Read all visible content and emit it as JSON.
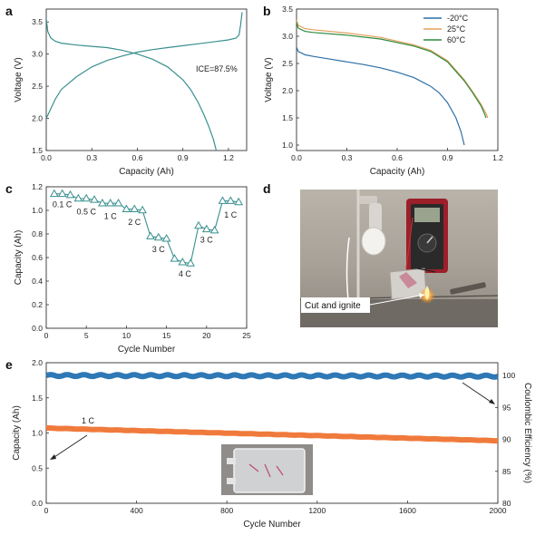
{
  "panels": {
    "a": "a",
    "b": "b",
    "c": "c",
    "d": "d",
    "e": "e"
  },
  "photo_d": {
    "annotation": "Cut and ignite"
  },
  "colors": {
    "teal": "#3a8f8f",
    "blue": "#2c6fa6",
    "orange": "#e2a05a",
    "green": "#2e8b3e",
    "ce_blue": "#2e78b5",
    "cap_orange": "#f07a3c"
  },
  "chart_data": [
    {
      "id": "a",
      "type": "line",
      "xlabel": "Capacity (Ah)",
      "ylabel": "Voltage (V)",
      "xlim": [
        0,
        1.32
      ],
      "ylim": [
        1.5,
        3.7
      ],
      "xticks": [
        "0.0",
        "0.3",
        "0.6",
        "0.9",
        "1.2"
      ],
      "xtick_values": [
        0,
        0.3,
        0.6,
        0.9,
        1.2
      ],
      "yticks": [
        "1.5",
        "2.0",
        "2.5",
        "3.0",
        "3.5"
      ],
      "ytick_values": [
        1.5,
        2.0,
        2.5,
        3.0,
        3.5
      ],
      "annotation": "ICE=87.5%",
      "series": [
        {
          "x": [
            0,
            0.01,
            0.03,
            0.06,
            0.1,
            0.2,
            0.3,
            0.4,
            0.5,
            0.6,
            0.7,
            0.8,
            0.9,
            1.0,
            1.1,
            1.2,
            1.25,
            1.27,
            1.28,
            1.29
          ],
          "y": [
            2.0,
            2.05,
            2.15,
            2.3,
            2.45,
            2.65,
            2.8,
            2.9,
            2.97,
            3.03,
            3.07,
            3.1,
            3.13,
            3.16,
            3.19,
            3.22,
            3.25,
            3.3,
            3.45,
            3.65
          ]
        },
        {
          "x": [
            0,
            0.01,
            0.03,
            0.06,
            0.1,
            0.2,
            0.3,
            0.4,
            0.5,
            0.6,
            0.7,
            0.8,
            0.9,
            0.95,
            1.0,
            1.04,
            1.07,
            1.1,
            1.12
          ],
          "y": [
            3.55,
            3.35,
            3.25,
            3.2,
            3.17,
            3.14,
            3.12,
            3.1,
            3.06,
            3.0,
            2.92,
            2.8,
            2.6,
            2.45,
            2.25,
            2.05,
            1.88,
            1.68,
            1.5
          ]
        }
      ]
    },
    {
      "id": "b",
      "type": "line",
      "xlabel": "Capacity (Ah)",
      "ylabel": "Voltage (V)",
      "xlim": [
        0,
        1.2
      ],
      "ylim": [
        0.9,
        3.5
      ],
      "xticks": [
        "0.0",
        "0.3",
        "0.6",
        "0.9",
        "1.2"
      ],
      "xtick_values": [
        0,
        0.3,
        0.6,
        0.9,
        1.2
      ],
      "yticks": [
        "1.0",
        "1.5",
        "2.0",
        "2.5",
        "3.0",
        "3.5"
      ],
      "ytick_values": [
        1.0,
        1.5,
        2.0,
        2.5,
        3.0,
        3.5
      ],
      "legend_position": "top-right",
      "series": [
        {
          "name": "-20°C",
          "x": [
            0,
            0.01,
            0.05,
            0.1,
            0.2,
            0.3,
            0.4,
            0.5,
            0.6,
            0.7,
            0.8,
            0.85,
            0.9,
            0.95,
            0.98,
            1.0
          ],
          "y": [
            2.8,
            2.72,
            2.66,
            2.63,
            2.58,
            2.53,
            2.48,
            2.42,
            2.34,
            2.24,
            2.08,
            1.96,
            1.78,
            1.5,
            1.25,
            1.0
          ]
        },
        {
          "name": "25°C",
          "x": [
            0,
            0.01,
            0.05,
            0.1,
            0.3,
            0.5,
            0.7,
            0.8,
            0.9,
            1.0,
            1.05,
            1.1,
            1.13,
            1.14
          ],
          "y": [
            3.3,
            3.2,
            3.14,
            3.12,
            3.06,
            2.98,
            2.84,
            2.74,
            2.55,
            2.2,
            1.98,
            1.75,
            1.58,
            1.5
          ]
        },
        {
          "name": "60°C",
          "x": [
            0,
            0.01,
            0.05,
            0.1,
            0.3,
            0.5,
            0.7,
            0.8,
            0.9,
            1.0,
            1.05,
            1.1,
            1.12,
            1.13
          ],
          "y": [
            3.25,
            3.15,
            3.09,
            3.07,
            3.02,
            2.95,
            2.82,
            2.72,
            2.53,
            2.18,
            1.96,
            1.72,
            1.58,
            1.5
          ]
        }
      ]
    },
    {
      "id": "c",
      "type": "line",
      "xlabel": "Cycle Number",
      "ylabel": "Capacity (Ah)",
      "xlim": [
        0,
        25
      ],
      "ylim": [
        0,
        1.2
      ],
      "xticks": [
        "0",
        "5",
        "10",
        "15",
        "20",
        "25"
      ],
      "xtick_values": [
        0,
        5,
        10,
        15,
        20,
        25
      ],
      "yticks": [
        "0.0",
        "0.2",
        "0.4",
        "0.6",
        "0.8",
        "1.0",
        "1.2"
      ],
      "ytick_values": [
        0,
        0.2,
        0.4,
        0.6,
        0.8,
        1.0,
        1.2
      ],
      "series": [
        {
          "x": [
            1,
            2,
            3,
            4,
            5,
            6,
            7,
            8,
            9,
            10,
            11,
            12,
            13,
            14,
            15,
            16,
            17,
            18,
            19,
            20,
            21,
            22,
            23,
            24
          ],
          "y": [
            1.14,
            1.14,
            1.13,
            1.1,
            1.1,
            1.09,
            1.06,
            1.06,
            1.06,
            1.01,
            1.01,
            1.0,
            0.78,
            0.77,
            0.76,
            0.59,
            0.56,
            0.55,
            0.87,
            0.84,
            0.83,
            1.08,
            1.08,
            1.07
          ]
        }
      ],
      "annotations": [
        {
          "text": "0.1 C",
          "x": 2,
          "y": 1.05
        },
        {
          "text": "0.5 C",
          "x": 5,
          "y": 0.99
        },
        {
          "text": "1 C",
          "x": 8,
          "y": 0.95
        },
        {
          "text": "2 C",
          "x": 11,
          "y": 0.9
        },
        {
          "text": "3 C",
          "x": 14,
          "y": 0.67
        },
        {
          "text": "4 C",
          "x": 17.3,
          "y": 0.46
        },
        {
          "text": "3 C",
          "x": 20,
          "y": 0.75
        },
        {
          "text": "1 C",
          "x": 23,
          "y": 0.96
        }
      ]
    },
    {
      "id": "e",
      "type": "scatter",
      "xlabel": "Cycle Number",
      "ylabel": "Capacity (Ah)",
      "ylabel_right": "Coulombic Efficiency (%)",
      "xlim": [
        0,
        2000
      ],
      "ylim": [
        0,
        2.0
      ],
      "ylim_right": [
        80,
        102
      ],
      "xticks": [
        "0",
        "400",
        "800",
        "1200",
        "1600",
        "2000"
      ],
      "xtick_values": [
        0,
        400,
        800,
        1200,
        1600,
        2000
      ],
      "yticks": [
        "0.0",
        "0.5",
        "1.0",
        "1.5",
        "2.0"
      ],
      "ytick_values": [
        0,
        0.5,
        1.0,
        1.5,
        2.0
      ],
      "yticks_right": [
        "80",
        "85",
        "90",
        "95",
        "100"
      ],
      "ytick_values_right": [
        80,
        85,
        90,
        95,
        100
      ],
      "annotation": "1 C",
      "series": [
        {
          "name": "Capacity",
          "axis": "left",
          "x_start": 0,
          "x_end": 2000,
          "y_start": 1.07,
          "y_end": 0.89
        },
        {
          "name": "Coulombic Efficiency",
          "axis": "right",
          "x_start": 0,
          "x_end": 2000,
          "y_start": 100.0,
          "y_end": 99.9
        }
      ]
    }
  ]
}
